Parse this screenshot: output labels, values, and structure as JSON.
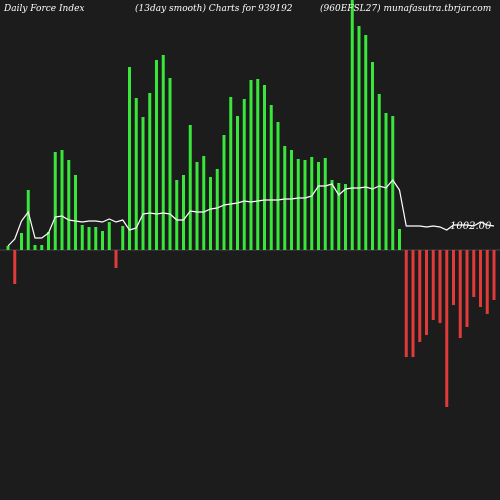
{
  "header": {
    "left": "Daily Force  Index",
    "middle": "(13day smooth) Charts for 939192",
    "right": "(960EFSL27) munafasutra.tbrjar.com"
  },
  "colors": {
    "background": "#1c1c1c",
    "positive": "#39e63a",
    "negative": "#e03a3a",
    "smooth_line": "#ffffff"
  },
  "chart_data": {
    "type": "bar",
    "series": [
      {
        "name": "",
        "values": [
          4,
          -34,
          17,
          60,
          5,
          5,
          18,
          98,
          100,
          90,
          75,
          25,
          23,
          23,
          19,
          28,
          -18,
          24,
          183,
          152,
          133,
          157,
          190,
          195,
          172,
          70,
          75,
          125,
          88,
          94,
          73,
          81,
          115,
          153,
          134,
          151,
          170,
          171,
          165,
          145,
          128,
          104,
          100,
          91,
          90,
          93,
          88,
          92,
          70,
          67,
          66,
          255,
          224,
          215,
          188,
          156,
          137,
          134,
          21,
          -107,
          -107,
          -92,
          -85,
          -70,
          -73,
          -157,
          -55,
          -88,
          -77,
          -47,
          -57,
          -64,
          -50
        ]
      },
      {
        "name": "",
        "values": [
          4,
          11,
          29,
          38,
          12,
          12,
          17,
          33,
          34,
          30,
          29,
          28,
          29,
          29,
          28,
          31,
          28,
          30,
          20,
          22,
          36,
          37,
          36,
          37,
          36,
          30,
          30,
          39,
          38,
          38,
          41,
          42,
          45,
          46,
          47,
          49,
          48,
          49,
          50,
          50,
          50,
          51,
          51,
          52,
          52,
          54,
          64,
          64,
          66,
          55,
          61,
          62,
          62,
          63,
          61,
          64,
          62,
          70,
          60,
          24,
          24,
          24,
          23,
          24,
          23,
          20,
          25,
          25,
          25,
          24,
          28,
          25,
          24
        ]
      }
    ],
    "annotations": [
      {
        "text": "1002.00"
      }
    ]
  }
}
